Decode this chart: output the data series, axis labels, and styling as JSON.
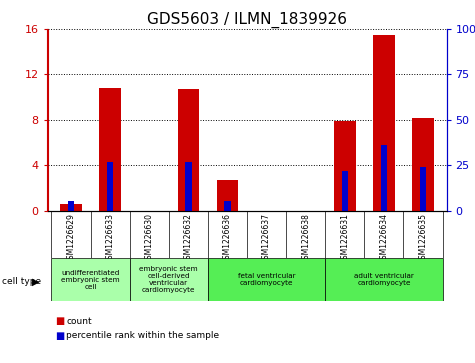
{
  "title": "GDS5603 / ILMN_1839926",
  "samples": [
    "GSM1226629",
    "GSM1226633",
    "GSM1226630",
    "GSM1226632",
    "GSM1226636",
    "GSM1226637",
    "GSM1226638",
    "GSM1226631",
    "GSM1226634",
    "GSM1226635"
  ],
  "counts": [
    0.6,
    10.8,
    0.0,
    10.7,
    2.7,
    0.0,
    0.0,
    7.9,
    15.5,
    8.2
  ],
  "percentiles": [
    5.0,
    27.0,
    0.0,
    27.0,
    5.5,
    0.0,
    0.0,
    22.0,
    36.0,
    24.0
  ],
  "ylim_left": [
    0,
    16
  ],
  "ylim_right": [
    0,
    100
  ],
  "yticks_left": [
    0,
    4,
    8,
    12,
    16
  ],
  "yticks_right": [
    0,
    25,
    50,
    75,
    100
  ],
  "cell_groups": [
    {
      "label": "undifferentiated\nembryonic stem\ncell",
      "indices": [
        0,
        1
      ],
      "color": "#aaffaa"
    },
    {
      "label": "embryonic stem\ncell-derived\nventricular\ncardiomyocyte",
      "indices": [
        2,
        3
      ],
      "color": "#aaffaa"
    },
    {
      "label": "fetal ventricular\ncardiomyocyte",
      "indices": [
        4,
        5,
        6
      ],
      "color": "#55ee55"
    },
    {
      "label": "adult ventricular\ncardiomyocyte",
      "indices": [
        7,
        8,
        9
      ],
      "color": "#55ee55"
    }
  ],
  "bar_color": "#cc0000",
  "percentile_color": "#0000cc",
  "sample_row_color": "#d8d8d8",
  "plot_bg": "#ffffff",
  "title_fontsize": 11,
  "bar_width": 0.55,
  "legend_label_count": "count",
  "legend_label_percentile": "percentile rank within the sample"
}
